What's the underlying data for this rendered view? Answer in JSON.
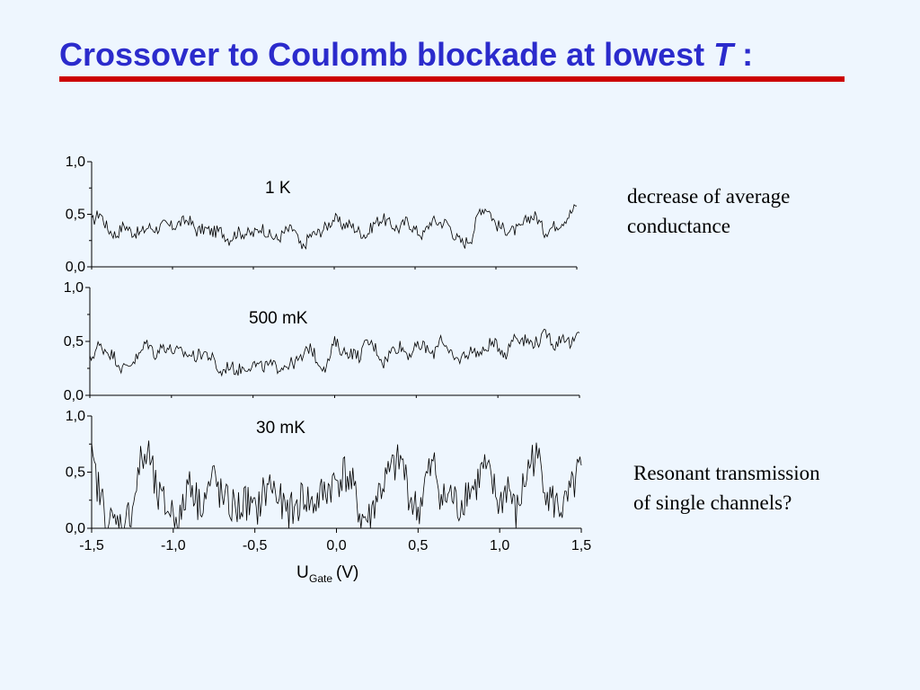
{
  "slide": {
    "title_main": "Crossover to Coulomb blockade at lowest ",
    "title_italic": "T",
    "title_end": " :",
    "rule_color": "#cc0000",
    "title_color": "#2b2bcc"
  },
  "notes": {
    "top_line1": "decrease of average",
    "top_line2": "conductance",
    "bottom_line1": "Resonant transmission",
    "bottom_line2": "of single channels?"
  },
  "chart_data": {
    "type": "line",
    "x_range": [
      -1.5,
      1.5
    ],
    "x_ticks": [
      "-1,5",
      "-1,0",
      "-0,5",
      "0,0",
      "0,5",
      "1,0",
      "1,5"
    ],
    "x_tick_values": [
      -1.5,
      -1.0,
      -0.5,
      0.0,
      0.5,
      1.0,
      1.5
    ],
    "xlabel_main": "U",
    "xlabel_sub": "Gate",
    "xlabel_unit": " (V)",
    "y_range": [
      0,
      1.0
    ],
    "y_ticks": [
      "0,0",
      "0,5",
      "1,0"
    ],
    "y_tick_values": [
      0,
      0.5,
      1.0
    ],
    "grid": false,
    "series": [
      {
        "name": "1 K",
        "x_step": 0.05,
        "values": [
          0.42,
          0.52,
          0.36,
          0.3,
          0.4,
          0.33,
          0.32,
          0.38,
          0.36,
          0.4,
          0.38,
          0.42,
          0.45,
          0.34,
          0.36,
          0.33,
          0.34,
          0.26,
          0.33,
          0.32,
          0.31,
          0.38,
          0.3,
          0.26,
          0.34,
          0.36,
          0.16,
          0.3,
          0.32,
          0.38,
          0.46,
          0.4,
          0.4,
          0.34,
          0.3,
          0.42,
          0.46,
          0.4,
          0.36,
          0.44,
          0.35,
          0.3,
          0.44,
          0.42,
          0.42,
          0.28,
          0.22,
          0.28,
          0.55,
          0.56,
          0.4,
          0.36,
          0.34,
          0.36,
          0.47,
          0.48,
          0.33,
          0.38,
          0.42,
          0.49,
          0.58
        ]
      },
      {
        "name": "500 mK",
        "x_step": 0.05,
        "values": [
          0.32,
          0.46,
          0.42,
          0.36,
          0.24,
          0.3,
          0.36,
          0.5,
          0.38,
          0.46,
          0.42,
          0.4,
          0.38,
          0.36,
          0.4,
          0.34,
          0.2,
          0.28,
          0.23,
          0.26,
          0.29,
          0.26,
          0.28,
          0.26,
          0.28,
          0.3,
          0.34,
          0.46,
          0.3,
          0.26,
          0.5,
          0.4,
          0.4,
          0.36,
          0.5,
          0.44,
          0.3,
          0.42,
          0.46,
          0.38,
          0.44,
          0.46,
          0.36,
          0.56,
          0.38,
          0.32,
          0.38,
          0.42,
          0.38,
          0.48,
          0.46,
          0.38,
          0.56,
          0.52,
          0.49,
          0.5,
          0.58,
          0.46,
          0.56,
          0.46,
          0.58
        ]
      },
      {
        "name": "30 mK",
        "x_step": 0.05,
        "values": [
          0.6,
          0.3,
          0.05,
          0.04,
          0.02,
          0.2,
          0.58,
          0.66,
          0.28,
          0.2,
          0.14,
          0.08,
          0.48,
          0.22,
          0.3,
          0.46,
          0.25,
          0.2,
          0.18,
          0.24,
          0.12,
          0.3,
          0.4,
          0.24,
          0.12,
          0.18,
          0.3,
          0.2,
          0.28,
          0.36,
          0.42,
          0.5,
          0.36,
          0.1,
          0.08,
          0.3,
          0.42,
          0.54,
          0.6,
          0.28,
          0.14,
          0.44,
          0.56,
          0.24,
          0.3,
          0.18,
          0.35,
          0.36,
          0.54,
          0.4,
          0.2,
          0.4,
          0.1,
          0.4,
          0.64,
          0.58,
          0.28,
          0.2,
          0.18,
          0.36,
          0.56
        ]
      }
    ]
  }
}
